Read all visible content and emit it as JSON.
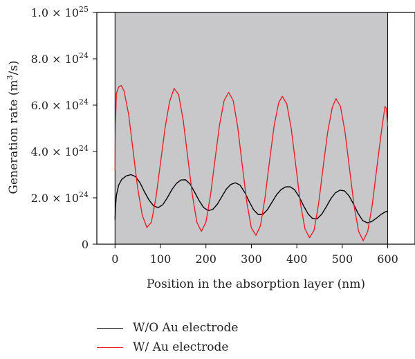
{
  "chart_data": {
    "type": "line",
    "xlabel": "Position in the absorption layer (nm)",
    "ylabel_main": "Generation rate (m",
    "ylabel_sup": "3",
    "ylabel_tail": "/s)",
    "xlim": [
      -40,
      660
    ],
    "ylim": [
      0,
      1e+25
    ],
    "x_ticks": [
      0,
      100,
      200,
      300,
      400,
      500,
      600
    ],
    "y_ticks": [
      {
        "value": 0,
        "mantissa": "0",
        "exp": ""
      },
      {
        "value": 2e+24,
        "mantissa": "2.0 × 10",
        "exp": "24"
      },
      {
        "value": 4e+24,
        "mantissa": "4.0 × 10",
        "exp": "24"
      },
      {
        "value": 6e+24,
        "mantissa": "6.0 × 10",
        "exp": "24"
      },
      {
        "value": 8e+24,
        "mantissa": "8.0 × 10",
        "exp": "24"
      },
      {
        "value": 1e+25,
        "mantissa": "1.0 × 10",
        "exp": "25"
      }
    ],
    "shaded_region": {
      "x_start": 0,
      "x_end": 600,
      "color": "#c8c8ca"
    },
    "grid": false,
    "legend_position": "bottom-left",
    "series": [
      {
        "name": "W/O Au electrode",
        "color": "#000000",
        "points": [
          [
            0,
            1.05e+24
          ],
          [
            1,
            1.6e+24
          ],
          [
            3,
            2.1e+24
          ],
          [
            8,
            2.55e+24
          ],
          [
            15,
            2.8e+24
          ],
          [
            25,
            2.95e+24
          ],
          [
            35,
            3e+24
          ],
          [
            45,
            2.92e+24
          ],
          [
            55,
            2.65e+24
          ],
          [
            65,
            2.25e+24
          ],
          [
            75,
            1.9e+24
          ],
          [
            85,
            1.65e+24
          ],
          [
            95,
            1.58e+24
          ],
          [
            105,
            1.7e+24
          ],
          [
            115,
            2e+24
          ],
          [
            125,
            2.35e+24
          ],
          [
            135,
            2.62e+24
          ],
          [
            145,
            2.77e+24
          ],
          [
            155,
            2.78e+24
          ],
          [
            165,
            2.6e+24
          ],
          [
            175,
            2.25e+24
          ],
          [
            185,
            1.88e+24
          ],
          [
            195,
            1.58e+24
          ],
          [
            205,
            1.45e+24
          ],
          [
            215,
            1.5e+24
          ],
          [
            225,
            1.72e+24
          ],
          [
            235,
            2.05e+24
          ],
          [
            245,
            2.38e+24
          ],
          [
            255,
            2.58e+24
          ],
          [
            265,
            2.65e+24
          ],
          [
            275,
            2.55e+24
          ],
          [
            285,
            2.25e+24
          ],
          [
            295,
            1.85e+24
          ],
          [
            305,
            1.48e+24
          ],
          [
            315,
            1.28e+24
          ],
          [
            325,
            1.28e+24
          ],
          [
            335,
            1.48e+24
          ],
          [
            345,
            1.8e+24
          ],
          [
            355,
            2.12e+24
          ],
          [
            365,
            2.35e+24
          ],
          [
            375,
            2.47e+24
          ],
          [
            385,
            2.48e+24
          ],
          [
            395,
            2.35e+24
          ],
          [
            405,
            2.05e+24
          ],
          [
            415,
            1.65e+24
          ],
          [
            425,
            1.3e+24
          ],
          [
            435,
            1.1e+24
          ],
          [
            445,
            1.1e+24
          ],
          [
            455,
            1.3e+24
          ],
          [
            465,
            1.62e+24
          ],
          [
            475,
            1.97e+24
          ],
          [
            485,
            2.22e+24
          ],
          [
            495,
            2.33e+24
          ],
          [
            505,
            2.3e+24
          ],
          [
            515,
            2.08e+24
          ],
          [
            525,
            1.72e+24
          ],
          [
            535,
            1.32e+24
          ],
          [
            545,
            1.02e+24
          ],
          [
            555,
            9.2e+23
          ],
          [
            565,
            9.8e+23
          ],
          [
            575,
            1.12e+24
          ],
          [
            585,
            1.28e+24
          ],
          [
            595,
            1.4e+24
          ],
          [
            600,
            1.42e+24
          ]
        ]
      },
      {
        "name": "W/ Au electrode",
        "color": "#e8202a",
        "points": [
          [
            0,
            3.2e+24
          ],
          [
            1,
            5.2e+24
          ],
          [
            3,
            6.5e+24
          ],
          [
            8,
            6.78e+24
          ],
          [
            14,
            6.85e+24
          ],
          [
            20,
            6.6e+24
          ],
          [
            30,
            5.6e+24
          ],
          [
            40,
            4e+24
          ],
          [
            50,
            2.4e+24
          ],
          [
            60,
            1.25e+24
          ],
          [
            70,
            7.2e+23
          ],
          [
            80,
            9.5e+23
          ],
          [
            90,
            2e+24
          ],
          [
            100,
            3.5e+24
          ],
          [
            110,
            5e+24
          ],
          [
            120,
            6.15e+24
          ],
          [
            130,
            6.72e+24
          ],
          [
            140,
            6.45e+24
          ],
          [
            150,
            5.35e+24
          ],
          [
            160,
            3.75e+24
          ],
          [
            170,
            2.15e+24
          ],
          [
            180,
            9.5e+23
          ],
          [
            190,
            5.5e+23
          ],
          [
            200,
            9.5e+23
          ],
          [
            210,
            2.1e+24
          ],
          [
            220,
            3.65e+24
          ],
          [
            230,
            5.15e+24
          ],
          [
            240,
            6.2e+24
          ],
          [
            250,
            6.55e+24
          ],
          [
            260,
            6.2e+24
          ],
          [
            270,
            5.05e+24
          ],
          [
            280,
            3.4e+24
          ],
          [
            290,
            1.8e+24
          ],
          [
            300,
            7e+23
          ],
          [
            310,
            3.8e+23
          ],
          [
            320,
            8e+23
          ],
          [
            330,
            2e+24
          ],
          [
            340,
            3.6e+24
          ],
          [
            350,
            5.1e+24
          ],
          [
            360,
            6.1e+24
          ],
          [
            368,
            6.38e+24
          ],
          [
            378,
            6.05e+24
          ],
          [
            388,
            4.95e+24
          ],
          [
            398,
            3.35e+24
          ],
          [
            408,
            1.75e+24
          ],
          [
            418,
            6.5e+23
          ],
          [
            428,
            2.8e+23
          ],
          [
            438,
            6e+23
          ],
          [
            448,
            1.75e+24
          ],
          [
            458,
            3.35e+24
          ],
          [
            468,
            4.85e+24
          ],
          [
            478,
            5.9e+24
          ],
          [
            486,
            6.28e+24
          ],
          [
            496,
            5.95e+24
          ],
          [
            506,
            4.85e+24
          ],
          [
            516,
            3.25e+24
          ],
          [
            526,
            1.65e+24
          ],
          [
            536,
            5.5e+23
          ],
          [
            546,
            1.5e+23
          ],
          [
            556,
            5.5e+23
          ],
          [
            566,
            1.7e+24
          ],
          [
            576,
            3.3e+24
          ],
          [
            586,
            4.85e+24
          ],
          [
            594,
            5.95e+24
          ],
          [
            597,
            5.85e+24
          ],
          [
            600,
            5.1e+24
          ]
        ]
      }
    ]
  }
}
